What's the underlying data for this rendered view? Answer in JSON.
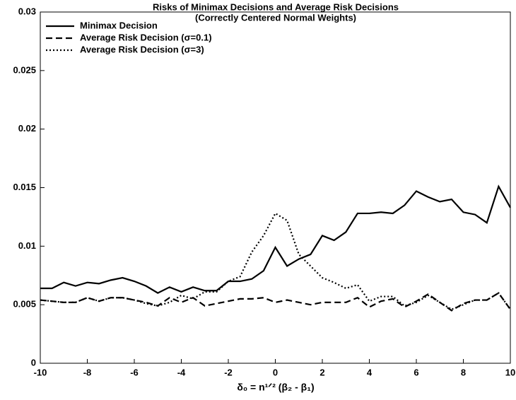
{
  "chart_data": {
    "type": "line",
    "title": [
      "Risks of Minimax Decisions and Average Risk Decisions",
      "(Correctly Centered Normal Weights)"
    ],
    "xlabel": "δ₀ = n¹ᐟ² (β₂ - β₁)",
    "x": [
      -10,
      -9.5,
      -9,
      -8.5,
      -8,
      -7.5,
      -7,
      -6.5,
      -6,
      -5.5,
      -5,
      -4.5,
      -4,
      -3.5,
      -3,
      -2.5,
      -2,
      -1.5,
      -1,
      -0.5,
      0,
      0.5,
      1,
      1.5,
      2,
      2.5,
      3,
      3.5,
      4,
      4.5,
      5,
      5.5,
      6,
      6.5,
      7,
      7.5,
      8,
      8.5,
      9,
      9.5,
      10
    ],
    "series": [
      {
        "name": "Minimax Decision",
        "color": "#000000",
        "dash": "solid",
        "values": [
          0.0064,
          0.0064,
          0.0069,
          0.0066,
          0.0069,
          0.0068,
          0.0071,
          0.0073,
          0.007,
          0.0066,
          0.006,
          0.0065,
          0.0061,
          0.0065,
          0.0062,
          0.0062,
          0.007,
          0.007,
          0.0072,
          0.0079,
          0.0099,
          0.0083,
          0.0089,
          0.0093,
          0.0109,
          0.0105,
          0.0112,
          0.0128,
          0.0128,
          0.0129,
          0.0128,
          0.0135,
          0.0147,
          0.0142,
          0.0138,
          0.014,
          0.0129,
          0.0127,
          0.012,
          0.0151,
          0.0133
        ]
      },
      {
        "name": "Average Risk Decision (σ=0.1)",
        "color": "#000000",
        "dash": "dashed",
        "values": [
          0.0054,
          0.0053,
          0.0052,
          0.0052,
          0.0056,
          0.0053,
          0.0056,
          0.0056,
          0.0054,
          0.0052,
          0.0049,
          0.0056,
          0.0052,
          0.0056,
          0.0049,
          0.0051,
          0.0053,
          0.0055,
          0.0055,
          0.0056,
          0.0052,
          0.0054,
          0.0052,
          0.005,
          0.0052,
          0.0052,
          0.0052,
          0.0056,
          0.0048,
          0.0053,
          0.0055,
          0.0048,
          0.0053,
          0.0059,
          0.0052,
          0.0045,
          0.0051,
          0.0054,
          0.0054,
          0.006,
          0.0046
        ]
      },
      {
        "name": "Average Risk Decision (σ=3)",
        "color": "#000000",
        "dash": "dotted",
        "values": [
          0.0054,
          0.0053,
          0.0052,
          0.0052,
          0.0056,
          0.0053,
          0.0056,
          0.0056,
          0.0054,
          0.0051,
          0.0049,
          0.0052,
          0.0058,
          0.0055,
          0.0061,
          0.0061,
          0.007,
          0.0074,
          0.0095,
          0.0109,
          0.0128,
          0.0122,
          0.0093,
          0.0083,
          0.0073,
          0.0069,
          0.0064,
          0.0067,
          0.0053,
          0.0057,
          0.0057,
          0.0049,
          0.0052,
          0.0058,
          0.0052,
          0.0046,
          0.005,
          0.0054,
          0.0054,
          0.006,
          0.0046
        ]
      }
    ],
    "xlim": [
      -10,
      10
    ],
    "xticks": [
      -10,
      -8,
      -6,
      -4,
      -2,
      0,
      2,
      4,
      6,
      8,
      10
    ],
    "ylim": [
      0,
      0.03
    ],
    "yticks": [
      0,
      0.005,
      0.01,
      0.015,
      0.02,
      0.025,
      0.03
    ],
    "legend": "upper left"
  }
}
